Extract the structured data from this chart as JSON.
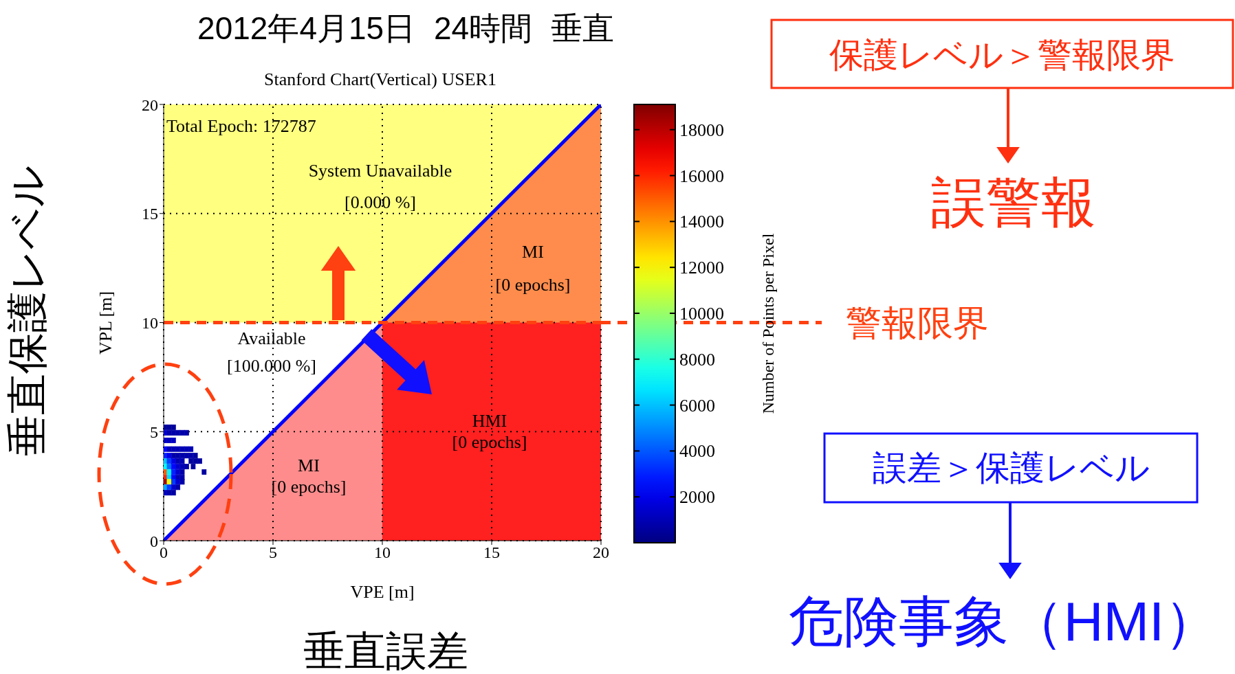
{
  "chart_data": {
    "type": "scatter",
    "title": "2012年4月15日 24時間 垂直",
    "subtitle": "Stanford Chart(Vertical) USER1",
    "xlabel": "VPE [m]",
    "ylabel": "VPL [m]",
    "clabel": "Number of Points per Pixel",
    "xlim": [
      0,
      20
    ],
    "xticks": [
      0,
      5,
      10,
      15,
      20
    ],
    "ylim": [
      0,
      20
    ],
    "yticks": [
      0,
      5,
      10,
      15,
      20
    ],
    "grid": true,
    "clim": [
      0,
      19100
    ],
    "cticks": [
      2000,
      4000,
      6000,
      8000,
      10000,
      12000,
      14000,
      16000,
      18000
    ],
    "bands": [
      {
        "axis": "y",
        "from": 10,
        "to": 20,
        "color": "#ffff80"
      }
    ],
    "ref_lines": [
      {
        "axis": "y",
        "value": 10,
        "label": "警報限界",
        "color": "#ff4010",
        "line_style": "dashed"
      }
    ],
    "series": [
      {
        "type": "area",
        "color": "#ff8c8c",
        "x": [
          0,
          10
        ],
        "values": [
          0,
          10
        ]
      },
      {
        "type": "area",
        "color": "#ff8c4c",
        "x": [
          10,
          20
        ],
        "values": [
          10,
          20
        ]
      },
      {
        "type": "area",
        "color": "#ff2020",
        "x": [
          10,
          20
        ],
        "values": [
          10,
          10
        ]
      },
      {
        "type": "line",
        "color": "#0000ff",
        "x": [
          0,
          20
        ],
        "values": [
          0,
          20
        ]
      },
      {
        "marker": "square",
        "colors": [
          "#00009a",
          "#00009a",
          "#00009a",
          "#0000d0",
          "#0000aa",
          "#0000aa",
          "#0000aa",
          "#0000aa",
          "#0000aa",
          "#0000c0",
          "#0000c0",
          "#0000c0",
          "#0006ff",
          "#0000b5",
          "#0000b5",
          "#0000b5",
          "#0000b5",
          "#0000b5",
          "#0000b5",
          "#0021ff",
          "#0000ea",
          "#0000aa",
          "#0000aa",
          "#0000aa",
          "#0000aa",
          "#0000aa",
          "#0000a0",
          "#00c1ff",
          "#003bff",
          "#0000ea",
          "#0000b5",
          "#0000b5",
          "#0000a0",
          "#0000a0",
          "#0000a0",
          "#00f6ff",
          "#0071ff",
          "#0006ff",
          "#0000d0",
          "#0000b5",
          "#0000aa",
          "#0000a0",
          "#ff5b00",
          "#00f6ff",
          "#0021ff",
          "#0000d0",
          "#0000aa",
          "#0000a0",
          "#ff2600",
          "#00dcff",
          "#0006ff",
          "#0000b5",
          "#0000aa",
          "#a00000",
          "#e8ff17",
          "#003bff",
          "#0000d0",
          "#0000aa",
          "#00a6ff",
          "#003bff",
          "#0000d0",
          "#0000aa",
          "#0000c0",
          "#0000aa",
          "#0000a5"
        ],
        "x": [
          0.05,
          0.25,
          0.45,
          0.05,
          0.25,
          0.45,
          0.65,
          0.85,
          1.05,
          0.05,
          0.25,
          0.45,
          0.05,
          0.25,
          0.45,
          0.65,
          0.85,
          1.05,
          1.25,
          0.05,
          0.25,
          0.45,
          0.65,
          0.85,
          1.05,
          1.25,
          1.45,
          0.05,
          0.25,
          0.45,
          0.65,
          0.85,
          1.25,
          1.45,
          1.65,
          0.05,
          0.25,
          0.45,
          0.65,
          0.85,
          1.05,
          1.35,
          0.05,
          0.25,
          0.45,
          0.65,
          0.85,
          1.85,
          0.05,
          0.25,
          0.45,
          0.65,
          0.85,
          0.05,
          0.25,
          0.45,
          0.65,
          0.85,
          0.05,
          0.25,
          0.45,
          0.65,
          0.05,
          0.25,
          0.45
        ],
        "values": [
          5.2,
          5.2,
          5.2,
          4.95,
          4.95,
          4.95,
          4.95,
          4.95,
          4.95,
          4.6,
          4.6,
          4.6,
          4.2,
          4.2,
          4.2,
          4.2,
          4.2,
          4.2,
          4.2,
          3.9,
          3.9,
          3.9,
          3.9,
          3.9,
          3.9,
          3.9,
          3.9,
          3.65,
          3.65,
          3.65,
          3.65,
          3.65,
          3.65,
          3.65,
          3.65,
          3.4,
          3.4,
          3.4,
          3.4,
          3.4,
          3.4,
          3.4,
          3.15,
          3.15,
          3.15,
          3.15,
          3.15,
          3.15,
          2.9,
          2.9,
          2.9,
          2.9,
          2.9,
          2.7,
          2.7,
          2.7,
          2.7,
          2.7,
          2.45,
          2.45,
          2.45,
          2.45,
          2.2,
          2.2,
          2.2
        ],
        "cvalues": [
          500,
          500,
          500,
          1500,
          800,
          800,
          800,
          800,
          800,
          1200,
          1200,
          1200,
          2500,
          1000,
          1000,
          1000,
          1000,
          1000,
          1000,
          3000,
          2000,
          800,
          800,
          800,
          800,
          800,
          600,
          6000,
          3500,
          2000,
          1000,
          1000,
          600,
          600,
          600,
          7000,
          4500,
          2500,
          1500,
          1000,
          800,
          600,
          15000,
          7000,
          3000,
          1500,
          800,
          600,
          16000,
          6500,
          2500,
          1000,
          800,
          18500,
          11500,
          3500,
          1500,
          800,
          5500,
          3500,
          1500,
          800,
          1200,
          800,
          700
        ]
      }
    ],
    "annotations": [
      "Total Epoch: 172787",
      "System Unavailable",
      "[0.000 %]",
      "MI",
      "[0 epochs]",
      "Available",
      "[100.000 %]",
      "HMI",
      "[0 epochs]",
      "MI",
      "[0 epochs]",
      "保護レベル＞警報限界",
      "誤警報",
      "誤差＞保護レベル",
      "危険事象（HMI）",
      "垂直保護レベル",
      "垂直誤差"
    ]
  }
}
